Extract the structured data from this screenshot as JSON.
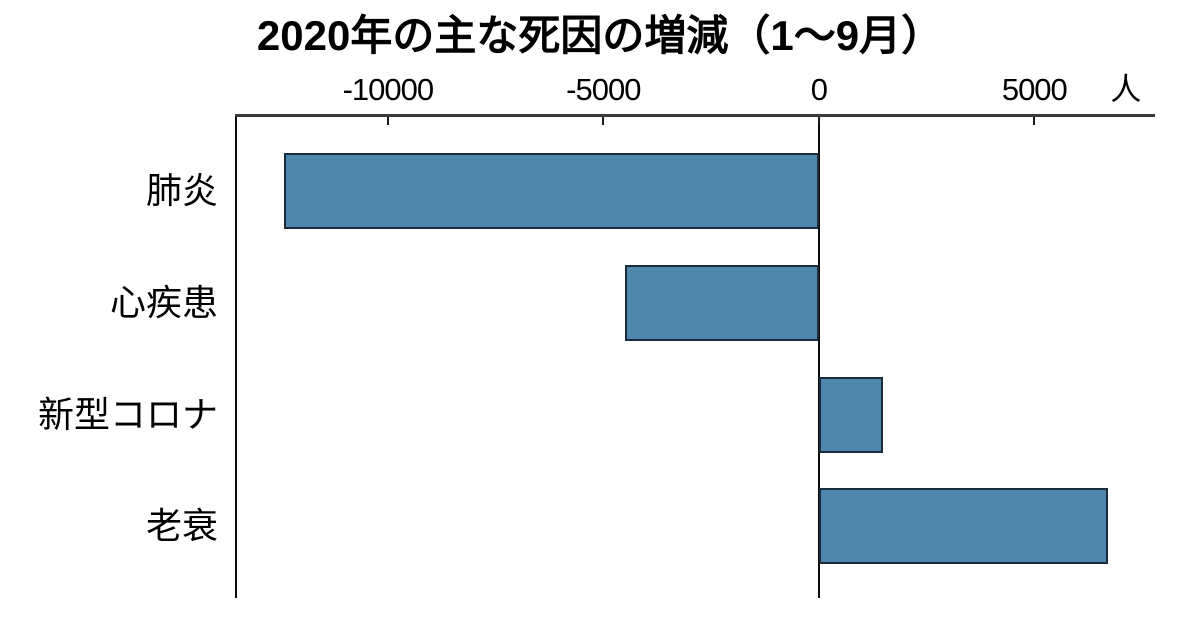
{
  "page": {
    "background": "#ffffff"
  },
  "chart_data": {
    "type": "bar",
    "orientation": "horizontal",
    "title": "2020年の主な死因の増減（1～9月）",
    "unit_label": "人",
    "categories": [
      "肺炎",
      "心疾患",
      "新型コロナ",
      "老衰"
    ],
    "values": [
      -12400,
      -4500,
      1500,
      6700
    ],
    "xlim": [
      -13500,
      7800
    ],
    "xticks": [
      {
        "value": -10000,
        "label": "-10000"
      },
      {
        "value": -5000,
        "label": "-5000"
      },
      {
        "value": 0,
        "label": "0"
      },
      {
        "value": 5000,
        "label": "5000"
      }
    ],
    "legend": "none",
    "grid": "none",
    "colors": {
      "bar_fill": "#4e87ab",
      "bar_border": "#1c2b3a",
      "axis_line": "#3a3a3a",
      "spine_line": "#0a0a0a",
      "tick_mark": "#1a1a1a",
      "text": "#000000"
    }
  }
}
